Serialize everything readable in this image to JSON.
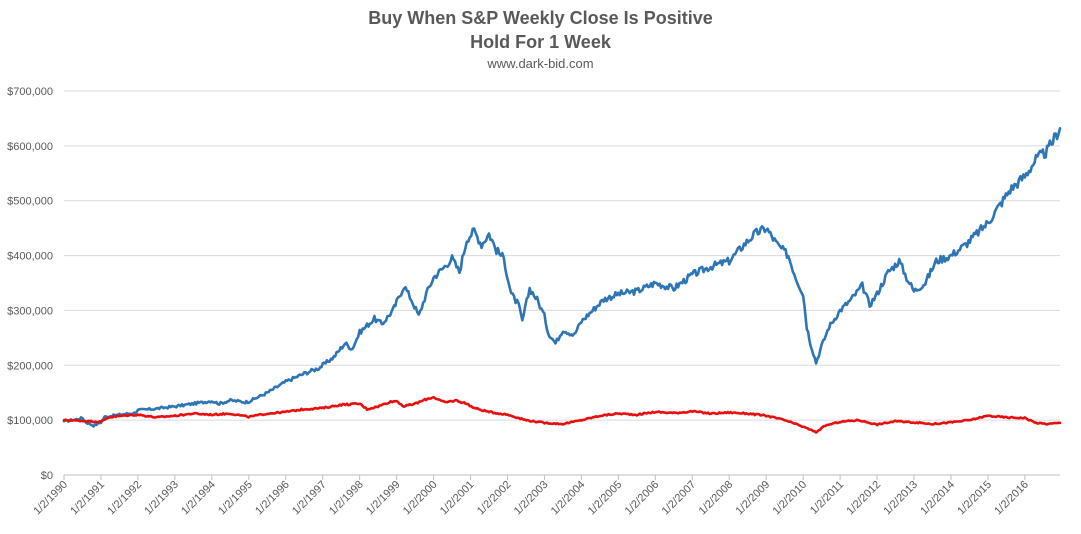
{
  "chart_data": {
    "type": "line",
    "title": "Buy When S&P Weekly Close Is Positive",
    "subtitle": "Hold For 1 Week",
    "source": "www.dark-bid.com",
    "x_tick_labels": [
      "1/2/1990",
      "1/2/1991",
      "1/2/1992",
      "1/2/1993",
      "1/2/1994",
      "1/2/1995",
      "1/2/1996",
      "1/2/1997",
      "1/2/1998",
      "1/2/1999",
      "1/2/2000",
      "1/2/2001",
      "1/2/2002",
      "1/2/2003",
      "1/2/2004",
      "1/2/2005",
      "1/2/2006",
      "1/2/2007",
      "1/2/2008",
      "1/2/2009",
      "1/2/2010",
      "1/2/2011",
      "1/2/2012",
      "1/2/2013",
      "1/2/2014",
      "1/2/2015",
      "1/2/2016"
    ],
    "x_range": [
      1990.0,
      2016.95
    ],
    "y_tick_labels": [
      "$0",
      "$100,000",
      "$200,000",
      "$300,000",
      "$400,000",
      "$500,000",
      "$600,000",
      "$700,000"
    ],
    "ylim": [
      0,
      700000
    ],
    "grid": true,
    "legend": "none",
    "series": [
      {
        "color": "#2e75b6",
        "points": [
          [
            1990.0,
            98000
          ],
          [
            1990.3,
            101000
          ],
          [
            1990.5,
            104000
          ],
          [
            1990.6,
            96000
          ],
          [
            1990.8,
            90000
          ],
          [
            1991.0,
            96000
          ],
          [
            1991.1,
            106000
          ],
          [
            1991.5,
            110000
          ],
          [
            1991.9,
            113000
          ],
          [
            1992.0,
            118000
          ],
          [
            1992.5,
            121000
          ],
          [
            1993.0,
            125000
          ],
          [
            1993.5,
            130000
          ],
          [
            1994.0,
            135000
          ],
          [
            1994.2,
            130000
          ],
          [
            1994.5,
            136000
          ],
          [
            1994.9,
            133000
          ],
          [
            1995.0,
            134000
          ],
          [
            1995.5,
            150000
          ],
          [
            1996.0,
            170000
          ],
          [
            1996.5,
            185000
          ],
          [
            1996.9,
            195000
          ],
          [
            1997.0,
            200000
          ],
          [
            1997.3,
            215000
          ],
          [
            1997.6,
            240000
          ],
          [
            1997.8,
            230000
          ],
          [
            1998.0,
            260000
          ],
          [
            1998.4,
            285000
          ],
          [
            1998.6,
            275000
          ],
          [
            1998.9,
            300000
          ],
          [
            1999.0,
            315000
          ],
          [
            1999.2,
            345000
          ],
          [
            1999.4,
            320000
          ],
          [
            1999.6,
            290000
          ],
          [
            1999.8,
            330000
          ],
          [
            2000.0,
            360000
          ],
          [
            2000.3,
            380000
          ],
          [
            2000.5,
            395000
          ],
          [
            2000.7,
            370000
          ],
          [
            2000.9,
            430000
          ],
          [
            2001.1,
            445000
          ],
          [
            2001.3,
            420000
          ],
          [
            2001.5,
            440000
          ],
          [
            2001.7,
            410000
          ],
          [
            2001.9,
            395000
          ],
          [
            2002.1,
            330000
          ],
          [
            2002.3,
            310000
          ],
          [
            2002.4,
            280000
          ],
          [
            2002.6,
            340000
          ],
          [
            2002.8,
            320000
          ],
          [
            2003.0,
            290000
          ],
          [
            2003.1,
            260000
          ],
          [
            2003.3,
            240000
          ],
          [
            2003.5,
            265000
          ],
          [
            2003.8,
            255000
          ],
          [
            2004.0,
            280000
          ],
          [
            2004.3,
            300000
          ],
          [
            2004.6,
            320000
          ],
          [
            2005.0,
            330000
          ],
          [
            2005.5,
            335000
          ],
          [
            2006.0,
            350000
          ],
          [
            2006.5,
            340000
          ],
          [
            2007.0,
            365000
          ],
          [
            2007.5,
            380000
          ],
          [
            2008.0,
            390000
          ],
          [
            2008.4,
            420000
          ],
          [
            2008.7,
            440000
          ],
          [
            2009.0,
            450000
          ],
          [
            2009.3,
            420000
          ],
          [
            2009.6,
            400000
          ],
          [
            2009.8,
            360000
          ],
          [
            2010.0,
            330000
          ],
          [
            2010.1,
            270000
          ],
          [
            2010.2,
            240000
          ],
          [
            2010.35,
            205000
          ],
          [
            2010.5,
            235000
          ],
          [
            2010.7,
            270000
          ],
          [
            2011.0,
            300000
          ],
          [
            2011.3,
            320000
          ],
          [
            2011.6,
            345000
          ],
          [
            2011.8,
            310000
          ],
          [
            2012.0,
            330000
          ],
          [
            2012.3,
            370000
          ],
          [
            2012.6,
            390000
          ],
          [
            2012.8,
            360000
          ],
          [
            2013.0,
            335000
          ],
          [
            2013.3,
            350000
          ],
          [
            2013.6,
            390000
          ],
          [
            2014.0,
            400000
          ],
          [
            2014.4,
            420000
          ],
          [
            2014.7,
            440000
          ],
          [
            2015.0,
            460000
          ],
          [
            2015.3,
            490000
          ],
          [
            2015.6,
            520000
          ],
          [
            2016.0,
            545000
          ],
          [
            2016.3,
            575000
          ],
          [
            2016.6,
            590000
          ],
          [
            2016.95,
            632000
          ]
        ]
      },
      {
        "color": "#e8100f",
        "points": [
          [
            1990.0,
            100000
          ],
          [
            1990.4,
            99000
          ],
          [
            1990.7,
            98000
          ],
          [
            1991.0,
            97000
          ],
          [
            1991.2,
            105000
          ],
          [
            1991.6,
            108000
          ],
          [
            1992.0,
            110000
          ],
          [
            1992.5,
            105000
          ],
          [
            1993.0,
            108000
          ],
          [
            1993.5,
            112000
          ],
          [
            1994.0,
            110000
          ],
          [
            1994.5,
            112000
          ],
          [
            1995.0,
            106000
          ],
          [
            1995.5,
            112000
          ],
          [
            1996.0,
            115000
          ],
          [
            1996.5,
            120000
          ],
          [
            1997.0,
            122000
          ],
          [
            1997.5,
            128000
          ],
          [
            1998.0,
            130000
          ],
          [
            1998.2,
            120000
          ],
          [
            1998.5,
            125000
          ],
          [
            1998.8,
            133000
          ],
          [
            1999.0,
            135000
          ],
          [
            1999.2,
            125000
          ],
          [
            1999.5,
            130000
          ],
          [
            1999.8,
            138000
          ],
          [
            2000.0,
            142000
          ],
          [
            2000.3,
            132000
          ],
          [
            2000.6,
            136000
          ],
          [
            2000.9,
            130000
          ],
          [
            2001.1,
            122000
          ],
          [
            2001.5,
            115000
          ],
          [
            2002.0,
            110000
          ],
          [
            2002.5,
            100000
          ],
          [
            2003.0,
            95000
          ],
          [
            2003.5,
            93000
          ],
          [
            2004.0,
            100000
          ],
          [
            2004.5,
            108000
          ],
          [
            2005.0,
            112000
          ],
          [
            2005.5,
            110000
          ],
          [
            2006.0,
            115000
          ],
          [
            2006.5,
            113000
          ],
          [
            2007.0,
            116000
          ],
          [
            2007.5,
            112000
          ],
          [
            2008.0,
            114000
          ],
          [
            2008.5,
            112000
          ],
          [
            2009.0,
            108000
          ],
          [
            2009.5,
            100000
          ],
          [
            2010.0,
            88000
          ],
          [
            2010.35,
            78000
          ],
          [
            2010.6,
            90000
          ],
          [
            2011.0,
            97000
          ],
          [
            2011.5,
            100000
          ],
          [
            2012.0,
            92000
          ],
          [
            2012.5,
            98000
          ],
          [
            2013.0,
            96000
          ],
          [
            2013.5,
            93000
          ],
          [
            2014.0,
            96000
          ],
          [
            2014.5,
            100000
          ],
          [
            2015.0,
            108000
          ],
          [
            2015.5,
            105000
          ],
          [
            2016.0,
            104000
          ],
          [
            2016.3,
            95000
          ],
          [
            2016.6,
            93000
          ],
          [
            2016.95,
            95000
          ]
        ]
      }
    ]
  }
}
